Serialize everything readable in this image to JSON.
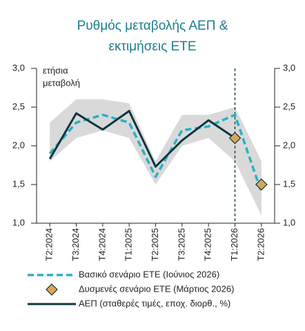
{
  "chart_data": {
    "type": "line",
    "title": [
      "Ρυθμός μεταβολής ΑΕΠ &",
      "εκτιμήσεις ΕΤΕ"
    ],
    "annotation": [
      "ετήσια",
      "μεταβολή"
    ],
    "categories": [
      "T2:2024",
      "T3:2024",
      "T4:2024",
      "T1:2025",
      "T2:2025",
      "T3:2025",
      "T4:2025",
      "T1:2026",
      "T2:2026"
    ],
    "ylim": [
      1.0,
      3.0
    ],
    "yticks": [
      {
        "value": 1.0,
        "label": "1,0"
      },
      {
        "value": 1.5,
        "label": "1,5"
      },
      {
        "value": 2.0,
        "label": "2,0"
      },
      {
        "value": 2.5,
        "label": "2,5"
      },
      {
        "value": 3.0,
        "label": "3,0"
      }
    ],
    "y2lim": [
      1.0,
      3.0
    ],
    "y2ticks": [
      {
        "value": 1.0,
        "label": "1,0"
      },
      {
        "value": 1.5,
        "label": "1,5"
      },
      {
        "value": 2.0,
        "label": "2,0"
      },
      {
        "value": 2.5,
        "label": "2,5"
      },
      {
        "value": 3.0,
        "label": "3,0"
      }
    ],
    "vline": "T1:2026",
    "band": {
      "color": "#d9d9d9",
      "upper": [
        2.3,
        2.6,
        2.6,
        2.55,
        1.8,
        2.4,
        2.4,
        2.5,
        1.8
      ],
      "lower": [
        1.8,
        2.1,
        2.2,
        2.1,
        1.5,
        2.0,
        2.1,
        1.8,
        1.1
      ]
    },
    "series": [
      {
        "name": "Βασικό σενάριο ΕΤΕ (Ιούνιος 2026)",
        "color": "#2ab0c5",
        "style": "dashed",
        "values": [
          1.9,
          2.3,
          2.4,
          2.3,
          1.6,
          2.2,
          2.25,
          2.4,
          1.4
        ]
      },
      {
        "name": "Δυσμενές σενάριο ΕΤΕ (Μάρτιος 2026)",
        "color": "#d9a653",
        "style": "diamond",
        "values": [
          null,
          null,
          null,
          null,
          null,
          null,
          null,
          2.1,
          1.5
        ]
      },
      {
        "name": "ΑΕΠ (σταθερές τιμές, εποχ. διορθ., %)",
        "color": "#0d3540",
        "style": "solid",
        "values": [
          1.83,
          2.42,
          2.21,
          2.45,
          1.73,
          2.07,
          2.33,
          2.1,
          null
        ]
      }
    ]
  }
}
